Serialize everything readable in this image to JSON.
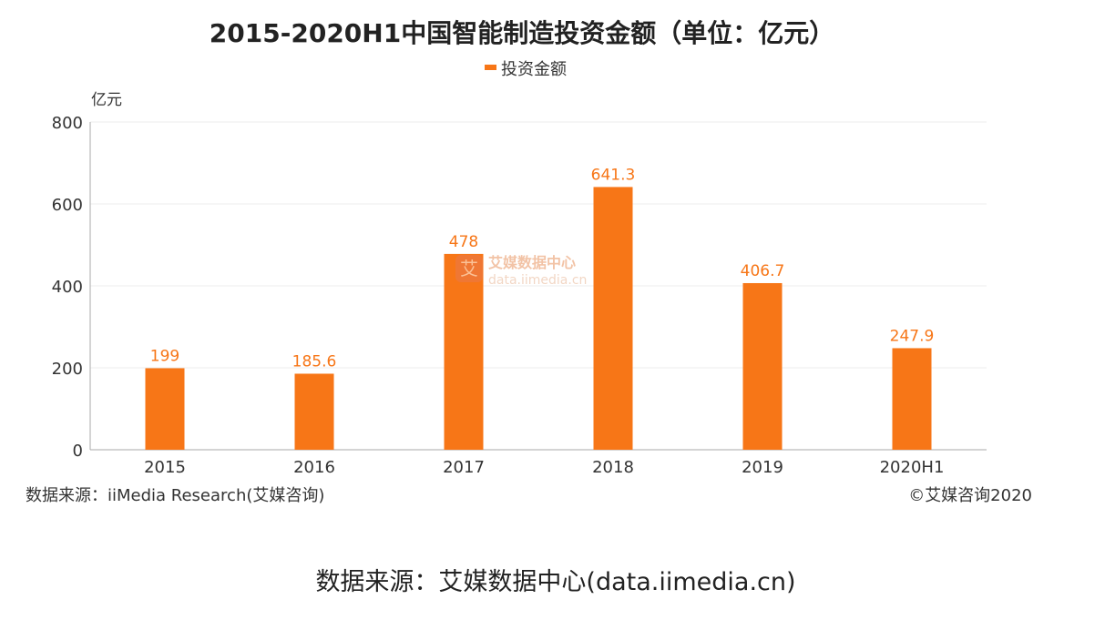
{
  "chart_data": {
    "type": "bar",
    "title": "2015-2020H1中国智能制造投资金额（单位：亿元）",
    "ylabel": "亿元",
    "xlabel": "",
    "categories": [
      "2015",
      "2016",
      "2017",
      "2018",
      "2019",
      "2020H1"
    ],
    "series": [
      {
        "name": "投资金额",
        "values": [
          199,
          185.6,
          478,
          641.3,
          406.7,
          247.9
        ],
        "color": "#f77617"
      }
    ],
    "ylim": [
      0,
      800
    ],
    "yticks": [
      0,
      200,
      400,
      600,
      800
    ],
    "grid": true,
    "legend_position": "top-center",
    "data_labels": [
      "199",
      "185.6",
      "478",
      "641.3",
      "406.7",
      "247.9"
    ]
  },
  "footer": {
    "source_left": "数据来源：iiMedia Research(艾媒咨询)",
    "copyright": "©艾媒咨询2020",
    "source_bottom": "数据来源：艾媒数据中心(data.iimedia.cn)"
  },
  "watermark": {
    "brand": "艾媒数据中心",
    "url": "data.iimedia.cn"
  },
  "colors": {
    "bar": "#f77617",
    "label": "#f77617",
    "axis": "#999999",
    "grid": "#eeeeee",
    "text": "#333333"
  }
}
